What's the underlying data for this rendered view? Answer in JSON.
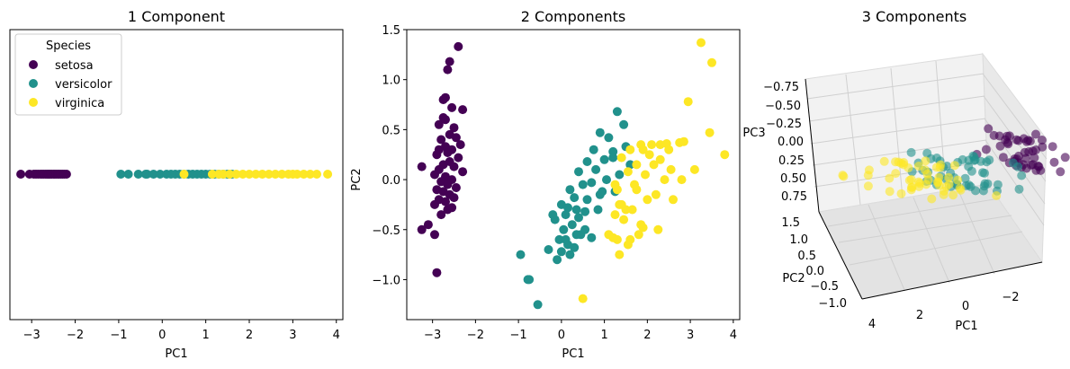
{
  "chart_data": [
    {
      "type": "scatter",
      "title": "1 Component",
      "xlabel": "PC1",
      "ylabel": "",
      "xlim": [
        -3.5,
        4.15
      ],
      "xticks": [
        -3,
        -2,
        -1,
        0,
        1,
        2,
        3,
        4
      ],
      "xtick_labels": [
        "−3",
        "−2",
        "−1",
        "0",
        "1",
        "2",
        "3",
        "4"
      ],
      "legend": {
        "title": "Species",
        "position": "top-left",
        "entries": [
          "setosa",
          "versicolor",
          "virginica"
        ]
      },
      "colors": {
        "setosa": "#440154",
        "versicolor": "#21918c",
        "virginica": "#fde725"
      },
      "series": [
        {
          "name": "setosa",
          "x": [
            -3.25,
            -3.05,
            -2.95,
            -2.9,
            -2.85,
            -2.8,
            -2.76,
            -2.72,
            -2.68,
            -2.65,
            -2.62,
            -2.6,
            -2.57,
            -2.54,
            -2.5,
            -2.47,
            -2.44,
            -2.4,
            -2.37,
            -2.33,
            -2.29,
            -2.25,
            -2.2
          ]
        },
        {
          "name": "versicolor",
          "x": [
            -0.95,
            -0.78,
            -0.55,
            -0.38,
            -0.35,
            -0.2,
            -0.05,
            0.1,
            0.2,
            0.3,
            0.4,
            0.5,
            0.6,
            0.7,
            0.8,
            0.9,
            1.0,
            1.1,
            1.2,
            1.3,
            1.4,
            1.5,
            1.6
          ]
        },
        {
          "name": "virginica",
          "x": [
            0.5,
            1.15,
            1.3,
            1.4,
            1.55,
            1.7,
            1.85,
            2.0,
            2.15,
            2.3,
            2.45,
            2.6,
            2.75,
            2.9,
            3.0,
            3.1,
            3.25,
            3.4,
            3.55,
            3.8
          ]
        }
      ]
    },
    {
      "type": "scatter",
      "title": "2 Components",
      "xlabel": "PC1",
      "ylabel": "PC2",
      "xlim": [
        -3.6,
        4.15
      ],
      "ylim": [
        -1.4,
        1.5
      ],
      "xticks": [
        -3,
        -2,
        -1,
        0,
        1,
        2,
        3,
        4
      ],
      "xtick_labels": [
        "−3",
        "−2",
        "−1",
        "0",
        "1",
        "2",
        "3",
        "4"
      ],
      "yticks": [
        -1.0,
        -0.5,
        0.0,
        0.5,
        1.0,
        1.5
      ],
      "ytick_labels": [
        "−1.0",
        "−0.5",
        "0.0",
        "0.5",
        "1.0",
        "1.5"
      ],
      "series": [
        {
          "name": "setosa",
          "x": [
            -2.4,
            -2.6,
            -2.65,
            -2.7,
            -2.75,
            -2.55,
            -2.3,
            -2.75,
            -2.85,
            -2.5,
            -2.6,
            -2.45,
            -2.8,
            -2.35,
            -2.7,
            -2.55,
            -2.65,
            -2.9,
            -2.4,
            -2.6,
            -2.75,
            -2.5,
            -2.85,
            -2.3,
            -2.95,
            -2.7,
            -2.55,
            -2.8,
            -2.65,
            -2.45,
            -2.9,
            -2.75,
            -2.6,
            -2.5,
            -2.85,
            -2.7,
            -2.95,
            -2.55,
            -2.65,
            -2.8,
            -3.25,
            -3.1,
            -3.25,
            -2.95,
            -2.9,
            -2.85,
            -2.7
          ],
          "y": [
            1.33,
            1.18,
            1.1,
            0.82,
            0.8,
            0.72,
            0.7,
            0.62,
            0.55,
            0.52,
            0.45,
            0.42,
            0.4,
            0.35,
            0.33,
            0.3,
            0.27,
            0.25,
            0.22,
            0.18,
            0.15,
            0.13,
            0.1,
            0.08,
            0.05,
            0.03,
            0.0,
            -0.02,
            -0.05,
            -0.08,
            -0.1,
            -0.12,
            -0.15,
            -0.18,
            -0.2,
            -0.22,
            -0.25,
            -0.28,
            -0.3,
            -0.35,
            0.13,
            -0.45,
            -0.5,
            -0.55,
            -0.93,
            0.3,
            0.6
          ]
        },
        {
          "name": "versicolor",
          "x": [
            1.3,
            1.45,
            0.9,
            1.1,
            1.5,
            0.75,
            1.2,
            1.0,
            0.6,
            1.6,
            0.8,
            0.4,
            1.35,
            1.05,
            0.7,
            0.5,
            0.2,
            1.25,
            0.9,
            0.3,
            0.6,
            0.0,
            0.15,
            0.35,
            0.55,
            0.1,
            0.4,
            -0.15,
            0.25,
            0.05,
            0.45,
            0.7,
            -0.05,
            0.15,
            0.3,
            -0.3,
            0.0,
            0.2,
            -0.1,
            0.55,
            0.85,
            -0.2,
            0.1,
            0.35,
            -0.95,
            -0.78,
            -0.75,
            -0.55,
            1.2,
            0.95
          ],
          "y": [
            0.68,
            0.55,
            0.47,
            0.42,
            0.33,
            0.3,
            0.28,
            0.2,
            0.18,
            0.15,
            0.1,
            0.08,
            0.05,
            0.0,
            -0.03,
            -0.05,
            -0.1,
            -0.12,
            -0.15,
            -0.18,
            -0.2,
            -0.25,
            -0.28,
            -0.3,
            -0.32,
            -0.35,
            -0.38,
            -0.4,
            -0.45,
            -0.5,
            -0.55,
            -0.58,
            -0.6,
            -0.65,
            -0.68,
            -0.7,
            -0.72,
            -0.75,
            -0.8,
            -0.5,
            -0.3,
            -0.35,
            -0.6,
            -0.55,
            -0.75,
            -1.0,
            -1.0,
            -1.25,
            0.22,
            -0.12
          ]
        },
        {
          "name": "virginica",
          "x": [
            3.25,
            3.5,
            2.95,
            3.45,
            2.3,
            2.75,
            1.85,
            2.1,
            2.45,
            1.9,
            1.6,
            2.5,
            2.05,
            1.4,
            2.85,
            2.3,
            1.75,
            2.15,
            2.55,
            1.55,
            1.95,
            2.4,
            1.7,
            2.8,
            3.1,
            3.8,
            1.3,
            2.2,
            2.6,
            1.35,
            1.5,
            2.0,
            1.25,
            1.45,
            1.85,
            2.25,
            1.1,
            1.6,
            1.3,
            1.8,
            1.55,
            1.2,
            1.9,
            1.35,
            1.65,
            1.4,
            1.75,
            1.25,
            0.5
          ],
          "y": [
            1.37,
            1.17,
            0.78,
            0.47,
            0.35,
            0.37,
            0.35,
            0.35,
            0.36,
            0.3,
            0.3,
            0.3,
            0.25,
            0.22,
            0.38,
            0.2,
            0.15,
            0.15,
            0.1,
            0.08,
            0.05,
            0.0,
            -0.05,
            0.0,
            0.1,
            0.25,
            -0.1,
            -0.15,
            -0.2,
            -0.25,
            -0.3,
            -0.2,
            -0.35,
            -0.4,
            -0.45,
            -0.5,
            -0.55,
            -0.6,
            -0.6,
            -0.55,
            -0.65,
            -0.58,
            -0.48,
            -0.75,
            -0.3,
            -0.25,
            -0.1,
            -0.05,
            -1.19
          ]
        }
      ]
    },
    {
      "type": "scatter3d",
      "title": "3 Components",
      "xlabel": "PC1",
      "ylabel": "PC2",
      "zlabel": "PC3",
      "xtick_labels": [
        "4",
        "2",
        "0",
        "−2"
      ],
      "ytick_labels": [
        "1.5",
        "1.0",
        "0.5",
        "0.0",
        "−0.5",
        "−1.0"
      ],
      "ztick_labels": [
        "−0.75",
        "−0.50",
        "−0.25",
        "0.00",
        "0.25",
        "0.50",
        "0.75"
      ]
    }
  ]
}
